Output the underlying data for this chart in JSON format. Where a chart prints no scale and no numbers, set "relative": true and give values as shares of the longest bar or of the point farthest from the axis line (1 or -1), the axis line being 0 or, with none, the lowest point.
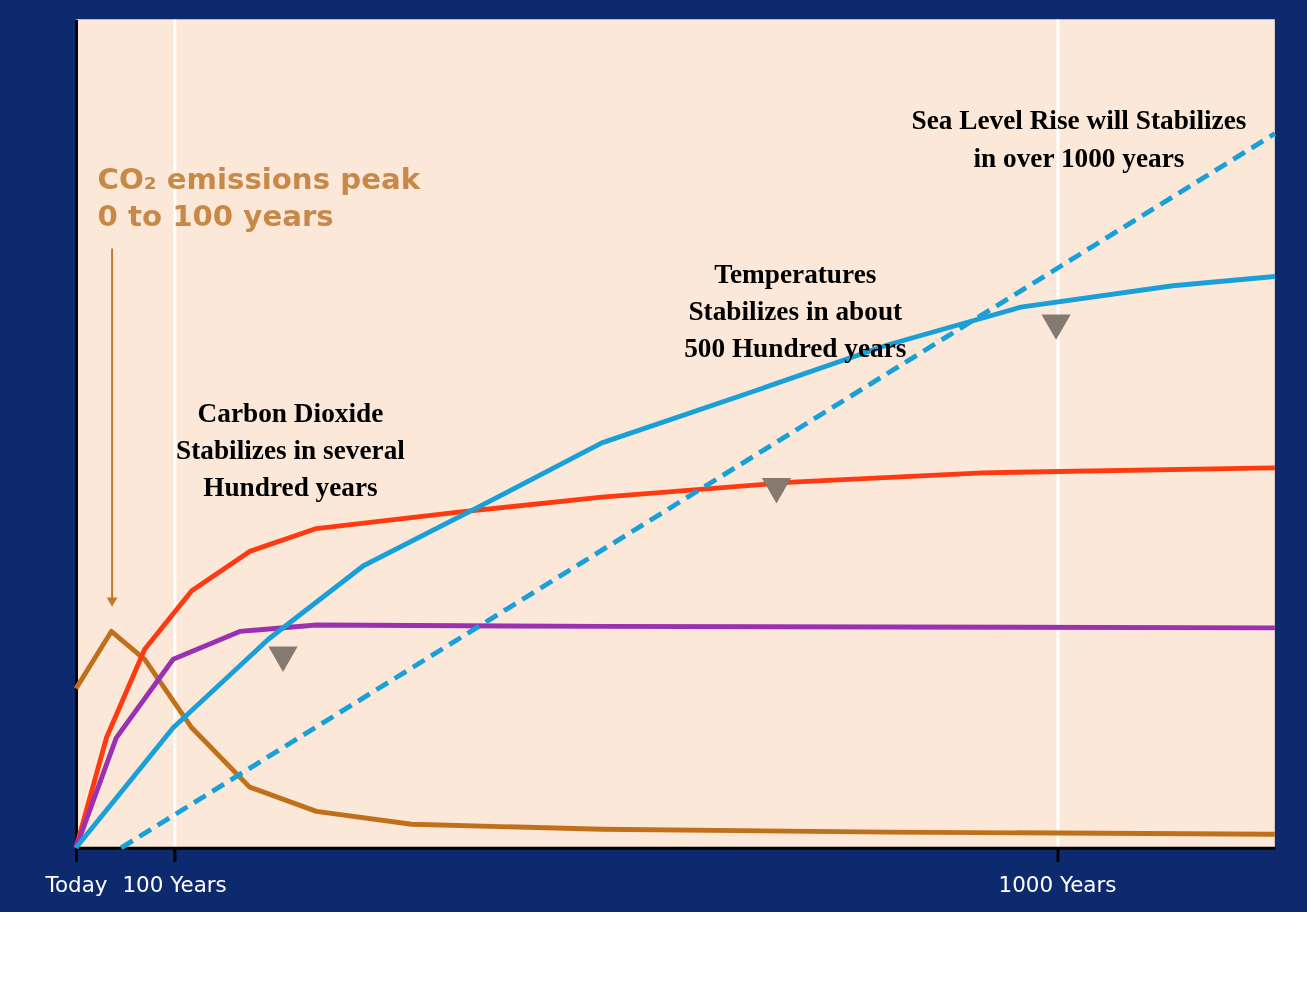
{
  "chart_data": {
    "type": "line",
    "relative": true,
    "grid": "x",
    "marker": "none",
    "xlim": [
      0,
      1222
    ],
    "xticks": [
      {
        "value": 0,
        "label": "Today"
      },
      {
        "value": 100,
        "label": "100 Years"
      },
      {
        "value": 1000,
        "label": "1000 Years"
      }
    ],
    "series": [
      {
        "color": "#c0701a",
        "x": [
          0,
          36,
          70,
          118,
          177,
          245,
          342,
          536,
          827,
          1222
        ],
        "values": [
          0.223,
          0.303,
          0.264,
          0.168,
          0.085,
          0.051,
          0.033,
          0.026,
          0.022,
          0.019
        ]
      },
      {
        "color": "#ff3a10",
        "x": [
          0,
          31,
          70,
          118,
          177,
          245,
          390,
          536,
          730,
          924,
          1222
        ],
        "values": [
          0,
          0.154,
          0.278,
          0.36,
          0.415,
          0.447,
          0.47,
          0.491,
          0.512,
          0.525,
          0.532
        ]
      },
      {
        "color": "#9b30b0",
        "x": [
          0,
          41,
          99,
          167,
          245,
          536,
          1222
        ],
        "values": [
          0,
          0.154,
          0.264,
          0.303,
          0.312,
          0.31,
          0.308
        ]
      },
      {
        "color": "#1aa0d8",
        "x": [
          0,
          99,
          196,
          293,
          410,
          536,
          682,
          827,
          963,
          1118,
          1222
        ],
        "values": [
          0,
          0.168,
          0.292,
          0.395,
          0.477,
          0.567,
          0.635,
          0.704,
          0.757,
          0.787,
          0.8
        ]
      },
      {
        "color": "#1aa0d8",
        "line_style": "dashed",
        "x": [
          46,
          634,
          1222
        ],
        "values": [
          0,
          0.5,
          1
        ]
      },
      {
        "type": "scatter",
        "marker": "triangle",
        "color": "#857a70",
        "x": [
          211,
          714,
          999
        ],
        "values": [
          0.264,
          0.5,
          0.729
        ]
      }
    ],
    "annotations": [
      "CO₂ emissions peak\n0 to 100 years",
      "Carbon Dioxide\nStabilizes in several\nHundred years",
      "Temperatures\nStabilizes in about\n500 Hundred years",
      "Sea Level Rise will Stabilizes\nin over 1000 years"
    ]
  }
}
